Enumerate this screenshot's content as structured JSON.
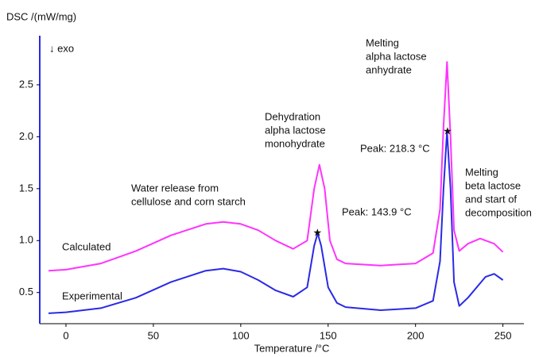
{
  "chart_data": {
    "type": "line",
    "y_label": "DSC /(mW/mg)",
    "x_label": "Temperature /°C",
    "direction_note": "↓ exo",
    "xlim": [
      -15,
      262
    ],
    "ylim": [
      0.2,
      2.95
    ],
    "xticks": [
      0,
      50,
      100,
      150,
      200,
      250
    ],
    "yticks": [
      0.5,
      {
        "value": 1,
        "label": "1.0"
      },
      1.5,
      {
        "value": 2,
        "label": "2.0"
      },
      2.5
    ],
    "y_axis_color": "#2a2ae6",
    "series": [
      {
        "name": "Calculated",
        "color": "#ff33ff",
        "x": [
          -10,
          0,
          20,
          40,
          60,
          80,
          90,
          100,
          110,
          120,
          130,
          138,
          142,
          145,
          148,
          151,
          155,
          160,
          180,
          200,
          210,
          214,
          216,
          218,
          220,
          222,
          225,
          230,
          237,
          245,
          250
        ],
        "values": [
          0.71,
          0.72,
          0.78,
          0.9,
          1.05,
          1.16,
          1.18,
          1.16,
          1.1,
          1.0,
          0.92,
          1.0,
          1.5,
          1.73,
          1.5,
          1.0,
          0.82,
          0.78,
          0.76,
          0.78,
          0.88,
          1.3,
          2.1,
          2.72,
          2.0,
          1.1,
          0.9,
          0.97,
          1.02,
          0.97,
          0.89
        ]
      },
      {
        "name": "Experimental",
        "color": "#2a2ae6",
        "x": [
          -10,
          0,
          20,
          40,
          60,
          80,
          90,
          100,
          110,
          120,
          130,
          138,
          142,
          144,
          146,
          150,
          155,
          160,
          180,
          200,
          210,
          214,
          216,
          218,
          220,
          222,
          225,
          230,
          240,
          245,
          250
        ],
        "values": [
          0.3,
          0.31,
          0.35,
          0.45,
          0.6,
          0.71,
          0.73,
          0.7,
          0.62,
          0.52,
          0.46,
          0.55,
          0.95,
          1.07,
          0.95,
          0.55,
          0.4,
          0.36,
          0.33,
          0.35,
          0.42,
          0.8,
          1.5,
          2.05,
          1.5,
          0.6,
          0.37,
          0.45,
          0.65,
          0.68,
          0.62
        ]
      }
    ],
    "peaks": [
      {
        "x": 143.9,
        "y": 1.07,
        "label": "Peak: 143.9 °C"
      },
      {
        "x": 218.3,
        "y": 2.05,
        "label": "Peak: 218.3 °C"
      }
    ],
    "annotations": [
      {
        "lines": [
          "Water release from",
          "cellulose and corn starch"
        ]
      },
      {
        "lines": [
          "Dehydration",
          "alpha lactose",
          "monohydrate"
        ]
      },
      {
        "lines": [
          "Melting",
          "alpha lactose",
          "anhydrate"
        ]
      },
      {
        "lines": [
          "Melting",
          "beta lactose",
          "and start of",
          "decomposition"
        ]
      }
    ]
  }
}
